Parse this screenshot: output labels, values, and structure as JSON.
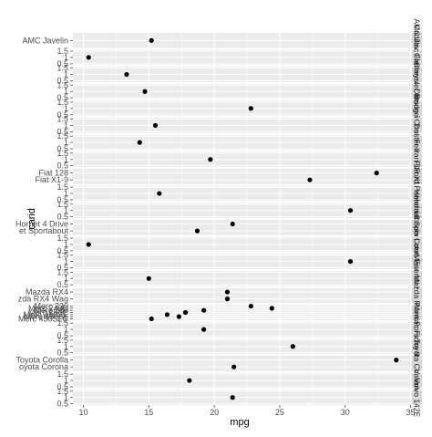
{
  "chart_data": {
    "type": "scatter",
    "xlabel": "mpg",
    "ylabel": "carid",
    "xlim": [
      9.2,
      35.1
    ],
    "x_ticks": [
      10,
      15,
      20,
      25,
      30,
      35
    ],
    "panel_y_ticks": [
      "0.5",
      "1",
      "1.5"
    ],
    "grid": true,
    "panels": [
      {
        "strip": "AMC Javelin",
        "tick_labels": [
          "AMC Javelin"
        ],
        "points": [
          {
            "x": 15.2,
            "y": 1
          }
        ]
      },
      {
        "strip": "Cadillac Fleetwood",
        "tick_labels": [
          "0.5",
          "1",
          "1.5"
        ],
        "points": [
          {
            "x": 10.4,
            "y": 1
          }
        ]
      },
      {
        "strip": "Camaro Z28",
        "tick_labels": [
          "0.5",
          "1",
          "1.5"
        ],
        "points": [
          {
            "x": 13.3,
            "y": 1
          }
        ]
      },
      {
        "strip": "Chrysler Imperial",
        "tick_labels": [
          "0.5",
          "1",
          "1.5"
        ],
        "points": [
          {
            "x": 14.7,
            "y": 1
          }
        ]
      },
      {
        "strip": "Datsun 710",
        "tick_labels": [
          "0.5",
          "1",
          "1.5"
        ],
        "points": [
          {
            "x": 22.8,
            "y": 1
          }
        ]
      },
      {
        "strip": "Dodge Challenger",
        "tick_labels": [
          "0.5",
          "1",
          "1.5"
        ],
        "points": [
          {
            "x": 15.5,
            "y": 1
          }
        ]
      },
      {
        "strip": "Duster 360",
        "tick_labels": [
          "0.5",
          "1",
          "1.5"
        ],
        "points": [
          {
            "x": 14.3,
            "y": 1
          }
        ]
      },
      {
        "strip": "Ferrari Dino",
        "tick_labels": [
          "0.5",
          "1",
          "1.5"
        ],
        "points": [
          {
            "x": 19.7,
            "y": 1
          }
        ]
      },
      {
        "strip": "Fiat X1-9",
        "tick_labels": [
          "Fiat X1-9",
          "Fiat 128"
        ],
        "points": [
          {
            "x": 27.3,
            "y": 1
          },
          {
            "x": 32.4,
            "y": 2
          }
        ]
      },
      {
        "strip": "Ford Pantera L",
        "tick_labels": [
          "0.5",
          "1",
          "1.5"
        ],
        "points": [
          {
            "x": 15.8,
            "y": 1
          }
        ]
      },
      {
        "strip": "Honda Civic",
        "tick_labels": [
          "0.5",
          "1",
          "1.5"
        ],
        "points": [
          {
            "x": 30.4,
            "y": 1
          }
        ]
      },
      {
        "strip": "Hornet Sportabout",
        "tick_labels": [
          "et Sportabout",
          "Hornet 4 Drive"
        ],
        "points": [
          {
            "x": 18.7,
            "y": 1
          },
          {
            "x": 21.4,
            "y": 2
          }
        ]
      },
      {
        "strip": "Lincoln Continental",
        "tick_labels": [
          "0.5",
          "1",
          "1.5"
        ],
        "points": [
          {
            "x": 10.4,
            "y": 1
          }
        ]
      },
      {
        "strip": "Lotus Europa",
        "tick_labels": [
          "0.5",
          "1",
          "1.5"
        ],
        "points": [
          {
            "x": 30.4,
            "y": 1
          }
        ]
      },
      {
        "strip": "Maserati Bora",
        "tick_labels": [
          "0.5",
          "1",
          "1.5"
        ],
        "points": [
          {
            "x": 15.0,
            "y": 1
          }
        ]
      },
      {
        "strip": "Mazda RX4",
        "tick_labels": [
          "zda RX4 Wag",
          "Mazda RX4"
        ],
        "points": [
          {
            "x": 21.0,
            "y": 1
          },
          {
            "x": 21.0,
            "y": 2
          }
        ]
      },
      {
        "strip": "Merc",
        "tick_labels": [
          "Merc 450SLC",
          "Merc 450SL",
          "Merc 450SE",
          "Merc 280C",
          "Merc 280",
          "Merc 240D",
          "Merc 230"
        ],
        "points": [
          {
            "x": 15.2,
            "y": 1
          },
          {
            "x": 17.3,
            "y": 2
          },
          {
            "x": 16.4,
            "y": 3
          },
          {
            "x": 17.8,
            "y": 4
          },
          {
            "x": 19.2,
            "y": 5
          },
          {
            "x": 24.4,
            "y": 6
          },
          {
            "x": 22.8,
            "y": 7
          }
        ]
      },
      {
        "strip": "Pontiac Firebird",
        "tick_labels": [
          "0.5",
          "1",
          "1.5"
        ],
        "points": [
          {
            "x": 19.2,
            "y": 1
          }
        ]
      },
      {
        "strip": "Porsche 914-2",
        "tick_labels": [
          "0.5",
          "1",
          "1.5"
        ],
        "points": [
          {
            "x": 26.0,
            "y": 1
          }
        ]
      },
      {
        "strip": "Toyota Corolla",
        "tick_labels": [
          "oyota Corona",
          "Toyota Corolla"
        ],
        "points": [
          {
            "x": 21.5,
            "y": 1
          },
          {
            "x": 33.9,
            "y": 2
          }
        ]
      },
      {
        "strip": "Valiant",
        "tick_labels": [
          "0.5",
          "1",
          "1.5"
        ],
        "points": [
          {
            "x": 18.1,
            "y": 1
          }
        ]
      },
      {
        "strip": "Volvo 142E",
        "tick_labels": [
          "0.5",
          "1",
          "1.5"
        ],
        "points": [
          {
            "x": 21.4,
            "y": 1
          }
        ]
      }
    ]
  },
  "colors": {
    "panel_bg": "#ebebeb",
    "grid": "#ffffff",
    "strip_bg": "#d9d9d9",
    "point": "#000000",
    "tick": "#4d4d4d"
  }
}
